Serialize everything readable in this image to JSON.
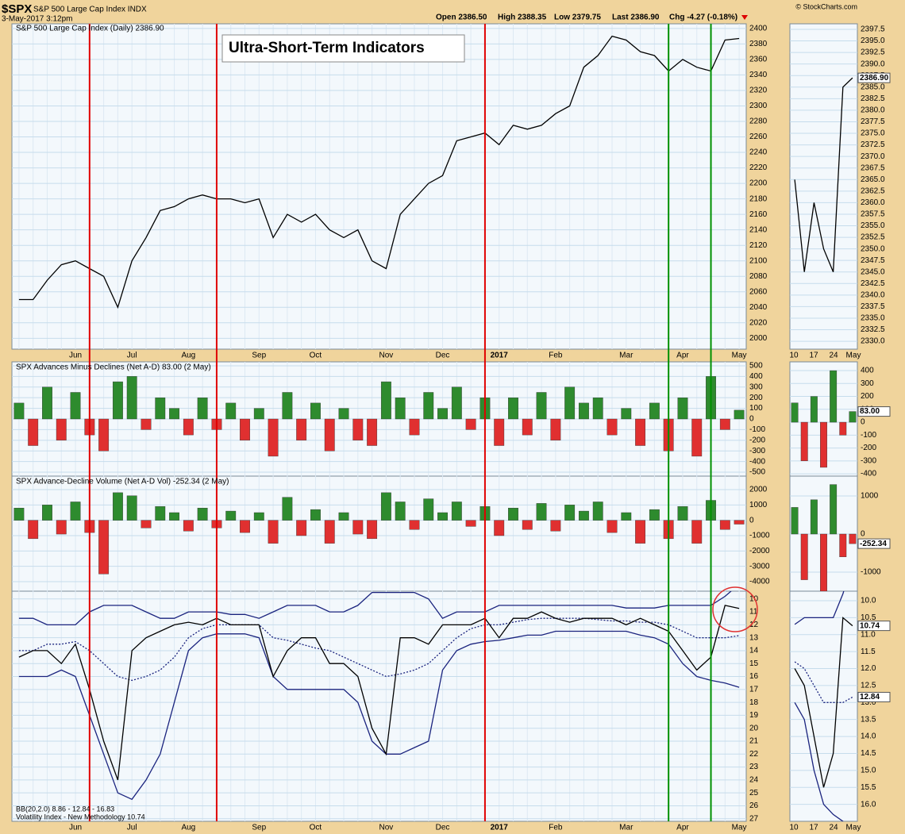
{
  "header": {
    "symbol": "$SPX",
    "name": "S&P 500 Large Cap Index INDX",
    "date": "3-May-2017 3:12pm",
    "open": "Open 2386.50",
    "high": "High 2388.35",
    "low": "Low 2379.75",
    "last": "Last 2386.90",
    "chg": "Chg -4.27 (-0.18%)",
    "credit": "© StockCharts.com"
  },
  "chart_data": [
    {
      "type": "line",
      "title": "S&P 500 Large Cap Index (Daily) 2386.90",
      "annotation": "Ultra-Short-Term Indicators",
      "color": "#000000",
      "categories": [
        null,
        null,
        null,
        null,
        "Jun",
        null,
        null,
        null,
        "Jul",
        null,
        null,
        null,
        "Aug",
        null,
        null,
        null,
        null,
        "Sep",
        null,
        null,
        null,
        "Oct",
        null,
        null,
        null,
        null,
        "Nov",
        null,
        null,
        null,
        "Dec",
        null,
        null,
        null,
        "2017",
        null,
        null,
        null,
        "Feb",
        null,
        null,
        null,
        null,
        "Mar",
        null,
        null,
        null,
        "Apr",
        null,
        null,
        null,
        "May"
      ],
      "values": [
        2050,
        2050,
        2075,
        2095,
        2100,
        2090,
        2080,
        2040,
        2100,
        2130,
        2165,
        2170,
        2180,
        2185,
        2180,
        2180,
        2175,
        2180,
        2130,
        2160,
        2150,
        2160,
        2140,
        2130,
        2140,
        2100,
        2090,
        2160,
        2180,
        2200,
        2210,
        2255,
        2260,
        2265,
        2250,
        2275,
        2270,
        2275,
        2290,
        2300,
        2350,
        2365,
        2390,
        2385,
        2370,
        2365,
        2345,
        2360,
        2350,
        2345,
        2385,
        2387
      ],
      "last_label": "2386.90",
      "ylim": [
        1986,
        2406
      ],
      "yticks": [
        2400,
        2380,
        2360,
        2340,
        2320,
        2300,
        2280,
        2260,
        2240,
        2220,
        2200,
        2180,
        2160,
        2140,
        2120,
        2100,
        2080,
        2060,
        2040,
        2020,
        2000
      ],
      "grid": true,
      "vlines": [
        {
          "index": 5,
          "color": "#e00000"
        },
        {
          "index": 14,
          "color": "#e00000"
        },
        {
          "index": 33,
          "color": "#e00000"
        },
        {
          "index": 46,
          "color": "#009000"
        },
        {
          "index": 49,
          "color": "#009000"
        }
      ],
      "zoom": {
        "categories": [
          "10",
          "17",
          "24",
          "May"
        ],
        "ylim": [
          2328.3,
          2398.7
        ],
        "yticks": [
          2397.5,
          {
            "value": 2395,
            "label": "2395.0"
          },
          2392.5,
          {
            "value": 2390,
            "label": "2390.0"
          },
          2387.5,
          {
            "value": 2385,
            "label": "2385.0"
          },
          2382.5,
          {
            "value": 2380,
            "label": "2380.0"
          },
          2377.5,
          {
            "value": 2375,
            "label": "2375.0"
          },
          2372.5,
          {
            "value": 2370,
            "label": "2370.0"
          },
          2367.5,
          {
            "value": 2365,
            "label": "2365.0"
          },
          2362.5,
          {
            "value": 2360,
            "label": "2360.0"
          },
          2357.5,
          {
            "value": 2355,
            "label": "2355.0"
          },
          2352.5,
          {
            "value": 2350,
            "label": "2350.0"
          },
          2347.5,
          {
            "value": 2345,
            "label": "2345.0"
          },
          2342.5,
          {
            "value": 2340,
            "label": "2340.0"
          },
          2337.5,
          {
            "value": 2335,
            "label": "2335.0"
          },
          2332.5,
          {
            "value": 2330,
            "label": "2330.0"
          }
        ]
      }
    },
    {
      "type": "bar",
      "title": "SPX Advances Minus Declines (Net A-D) 83.00 (2 May)",
      "positive_color": "#2e8b2e",
      "negative_color": "#e03030",
      "values": [
        150,
        -250,
        300,
        -200,
        250,
        -150,
        -300,
        350,
        400,
        -100,
        200,
        100,
        -150,
        200,
        -100,
        150,
        -200,
        100,
        -350,
        250,
        -200,
        150,
        -300,
        100,
        -200,
        -250,
        350,
        200,
        -150,
        250,
        100,
        300,
        -100,
        200,
        -250,
        200,
        -150,
        250,
        -200,
        300,
        150,
        200,
        -150,
        100,
        -250,
        150,
        -300,
        200,
        -350,
        400,
        -100,
        83
      ],
      "last_label": "83.00",
      "ylim": [
        -537,
        537
      ],
      "yticks": [
        500,
        400,
        300,
        200,
        100,
        0,
        -100,
        -200,
        -300,
        -400,
        -500
      ],
      "grid": true,
      "zoom": {
        "ylim": [
          -418,
          468
        ],
        "yticks": [
          400,
          300,
          200,
          100,
          0,
          -100,
          -200,
          -300,
          -400
        ]
      }
    },
    {
      "type": "bar",
      "title": "SPX Advance-Decline Volume (Net A-D Vol) -252.34 (2 May)",
      "positive_color": "#2e8b2e",
      "negative_color": "#e03030",
      "values": [
        800,
        -1200,
        1000,
        -900,
        1200,
        -800,
        -3500,
        1800,
        1600,
        -500,
        900,
        500,
        -700,
        800,
        -500,
        600,
        -800,
        500,
        -1500,
        1500,
        -1000,
        700,
        -1500,
        500,
        -900,
        -1200,
        1800,
        1200,
        -600,
        1400,
        500,
        1200,
        -400,
        900,
        -1000,
        800,
        -600,
        1100,
        -700,
        1000,
        600,
        1200,
        -800,
        500,
        -1500,
        700,
        -1200,
        900,
        -1500,
        1300,
        -600,
        -252.34
      ],
      "last_label": "-252.34",
      "ylim": [
        -4621,
        2879
      ],
      "yticks": [
        2000,
        1000,
        0,
        -1000,
        -2000,
        -3000,
        -4000
      ],
      "grid": true,
      "zoom": {
        "ylim": [
          -1500,
          1521
        ],
        "yticks": [
          1000,
          0,
          -1000
        ]
      }
    },
    {
      "type": "line",
      "inverted": true,
      "legend": [
        "BB(20,2.0) 8.86 - 12.84 - 16.83",
        "Volatility Index - New Methodology 10.74"
      ],
      "series": [
        {
          "color": "#000000",
          "style": "solid",
          "values": [
            14.5,
            14,
            14,
            15,
            13.5,
            17,
            21,
            24,
            14,
            13,
            12.5,
            12,
            11.8,
            12,
            11.5,
            12,
            12,
            12,
            16,
            14,
            13,
            13,
            15,
            15,
            16,
            20,
            22,
            13,
            13,
            13.5,
            12,
            12,
            12,
            11.5,
            13,
            11.5,
            11.5,
            11,
            11.5,
            11.8,
            11.5,
            11.5,
            11.5,
            12,
            11.5,
            12,
            12.5,
            14,
            15.5,
            14.5,
            10.5,
            10.74
          ]
        },
        {
          "color": "#1a237e",
          "style": "solid",
          "values": [
            11.5,
            11.5,
            12,
            12,
            12,
            11,
            10.5,
            10.5,
            10.5,
            11,
            11.5,
            11.5,
            11,
            11,
            11,
            11.2,
            11.2,
            11.5,
            11,
            10.5,
            10.5,
            10.5,
            11,
            11,
            10.5,
            9.5,
            9.5,
            9.5,
            9.5,
            10,
            11.5,
            11,
            11,
            11,
            10.5,
            10.5,
            10.5,
            10.5,
            10.5,
            10.5,
            10.5,
            10.5,
            10.5,
            10.7,
            10.7,
            10.7,
            10.5,
            10.5,
            10.5,
            10.5,
            9.8,
            8.86
          ]
        },
        {
          "color": "#1a237e",
          "style": "dotted",
          "values": [
            14,
            14,
            13.5,
            13.5,
            13.3,
            14,
            15,
            16,
            16.3,
            16,
            15.5,
            14.5,
            13,
            12.3,
            12,
            12,
            12,
            12,
            13,
            13.2,
            13.5,
            13.8,
            14,
            14.5,
            15,
            15.5,
            16,
            15.8,
            15.5,
            15,
            14,
            13,
            12.3,
            12,
            12,
            11.8,
            11.6,
            11.5,
            11.5,
            11.5,
            11.5,
            11.6,
            11.7,
            11.7,
            11.8,
            11.8,
            12,
            12.5,
            13,
            13,
            13,
            12.84
          ]
        },
        {
          "color": "#1a237e",
          "style": "solid",
          "values": [
            16,
            16,
            16,
            15.5,
            16,
            19,
            22,
            25,
            25.5,
            24,
            22,
            18,
            14,
            13,
            12.7,
            12.7,
            12.7,
            13,
            16,
            17,
            17,
            17,
            17,
            17,
            18,
            21,
            22,
            22,
            21.5,
            21,
            15.5,
            14,
            13.5,
            13.3,
            13.2,
            13,
            12.8,
            12.8,
            12.5,
            12.5,
            12.5,
            12.5,
            12.5,
            12.5,
            12.8,
            13,
            13.5,
            15,
            16,
            16.3,
            16.5,
            16.83
          ]
        }
      ],
      "last_labels": [
        "10.74",
        "12.84"
      ],
      "ylim": [
        9.4,
        27.2
      ],
      "yticks": [
        10,
        11,
        12,
        13,
        14,
        15,
        16,
        17,
        18,
        19,
        20,
        21,
        22,
        23,
        24,
        25,
        26,
        27
      ],
      "grid": true,
      "zoom": {
        "ylim": [
          9.72,
          16.5
        ],
        "yticks": [
          {
            "value": 10,
            "label": "10.0"
          },
          10.5,
          {
            "value": 11,
            "label": "11.0"
          },
          11.5,
          {
            "value": 12,
            "label": "12.0"
          },
          12.5,
          {
            "value": 13,
            "label": "13.0"
          },
          13.5,
          {
            "value": 14,
            "label": "14.0"
          },
          14.5,
          {
            "value": 15,
            "label": "15.0"
          },
          15.5,
          {
            "value": 16,
            "label": "16.0"
          }
        ]
      }
    }
  ]
}
